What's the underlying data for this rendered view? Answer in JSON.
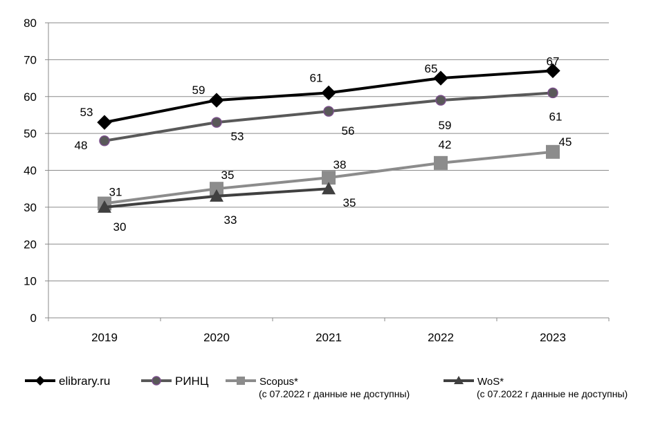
{
  "chart_data": {
    "type": "line",
    "categories": [
      "2019",
      "2020",
      "2021",
      "2022",
      "2023"
    ],
    "ylim": [
      0,
      80
    ],
    "yticks": [
      0,
      10,
      20,
      30,
      40,
      50,
      60,
      70,
      80
    ],
    "grid": true,
    "legend_position": "bottom",
    "series": [
      {
        "name": "elibrary.ru",
        "values": [
          53,
          59,
          61,
          65,
          67
        ],
        "color": "#000000",
        "marker": "diamond"
      },
      {
        "name": "РИНЦ",
        "values": [
          48,
          53,
          56,
          59,
          61
        ],
        "color": "#595959",
        "marker": "circle",
        "marker_outline": "#7a4f8a"
      },
      {
        "name": "Scopus*",
        "note": "(с 07.2022 г данные не доступны)",
        "values": [
          31,
          35,
          38,
          42,
          45
        ],
        "color": "#8c8c8c",
        "marker": "square"
      },
      {
        "name": "WoS*",
        "note": "(с 07.2022 г данные не доступны)",
        "values": [
          30,
          33,
          35,
          null,
          null
        ],
        "color": "#404040",
        "marker": "triangle"
      }
    ]
  }
}
